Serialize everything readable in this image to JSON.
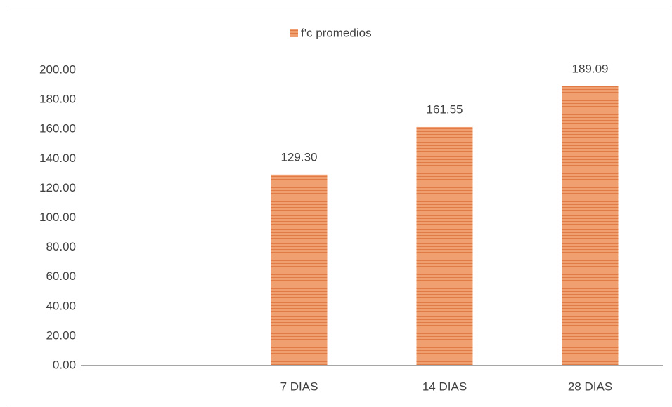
{
  "chart_data": {
    "type": "bar",
    "categories": [
      null,
      "7 DIAS",
      "14 DIAS",
      "28 DIAS"
    ],
    "series": [
      {
        "name": "f'c promedios",
        "color": "#f0a070",
        "values": [
          null,
          129.3,
          161.55,
          189.09
        ],
        "value_labels": [
          null,
          "129.30",
          "161.55",
          "189.09"
        ]
      }
    ],
    "ylim": [
      0,
      200
    ],
    "yticks": [
      {
        "value": 0,
        "label": "0.00"
      },
      {
        "value": 20,
        "label": "20.00"
      },
      {
        "value": 40,
        "label": "40.00"
      },
      {
        "value": 60,
        "label": "60.00"
      },
      {
        "value": 80,
        "label": "80.00"
      },
      {
        "value": 100,
        "label": "100.00"
      },
      {
        "value": 120,
        "label": "120.00"
      },
      {
        "value": 140,
        "label": "140.00"
      },
      {
        "value": 160,
        "label": "160.00"
      },
      {
        "value": 180,
        "label": "180.00"
      },
      {
        "value": 200,
        "label": "200.00"
      }
    ],
    "grid": false,
    "legend": "top"
  }
}
